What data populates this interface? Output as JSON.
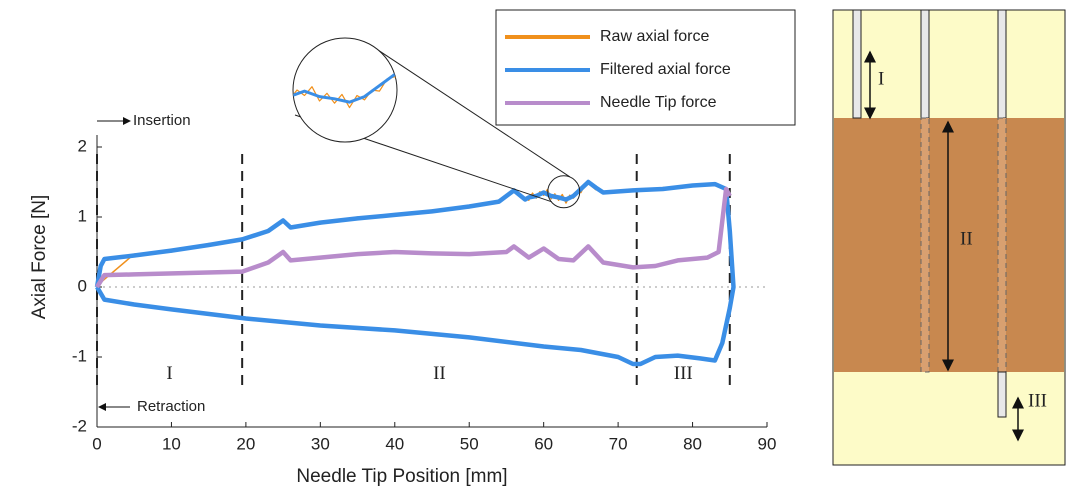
{
  "chart_data": {
    "type": "line",
    "xlabel": "Needle Tip Position [mm]",
    "ylabel": "Axial Force [N]",
    "xlim": [
      0,
      90
    ],
    "xticks": [
      0,
      10,
      20,
      30,
      40,
      50,
      60,
      70,
      80,
      90
    ],
    "ylim": [
      -2,
      2
    ],
    "yticks": [
      -2,
      -1,
      0,
      1,
      2
    ],
    "zero_line": true,
    "legend": "upper right",
    "phase_boundaries": [
      0,
      19.5,
      72.5,
      85
    ],
    "phase_labels": [
      "I",
      "II",
      "III"
    ],
    "annotations": {
      "insertion": "Insertion",
      "retraction": "Retraction"
    },
    "series": [
      {
        "name": "Raw axial force",
        "color": "#f0901c",
        "x": [
          0,
          5,
          10,
          15,
          19.5,
          23,
          25,
          26,
          30,
          35,
          40,
          45,
          50,
          54,
          56,
          57.5,
          58,
          58.5,
          59,
          59.5,
          60,
          60.5,
          61,
          61.5,
          62,
          62.5,
          63,
          63.5,
          64,
          64.5,
          65,
          65.5,
          66,
          67,
          68,
          72,
          76,
          80,
          83,
          84.5
        ],
        "values": [
          0.02,
          0.47,
          0.5,
          0.62,
          0.67,
          0.82,
          0.93,
          0.87,
          0.9,
          1.0,
          1.02,
          1.1,
          1.13,
          1.24,
          1.36,
          1.27,
          1.24,
          1.34,
          1.27,
          1.36,
          1.31,
          1.39,
          1.26,
          1.33,
          1.24,
          1.32,
          1.2,
          1.31,
          1.27,
          1.36,
          1.35,
          1.46,
          1.48,
          1.39,
          1.37,
          1.36,
          1.42,
          1.44,
          1.49,
          1.38
        ]
      },
      {
        "name": "Filtered axial force",
        "color": "#3a8ee6",
        "x": [
          0,
          0.5,
          1,
          5,
          10,
          15,
          19.5,
          23,
          25,
          26,
          30,
          35,
          40,
          45,
          50,
          54,
          56,
          57.5,
          58,
          59,
          60,
          61,
          62,
          63,
          64,
          65,
          66,
          67,
          68,
          72,
          76,
          80,
          83,
          84.5,
          85,
          85.5,
          85,
          84,
          83,
          81,
          78,
          75,
          73,
          72,
          70,
          65,
          60,
          50,
          40,
          30,
          20,
          10,
          5,
          1,
          0
        ],
        "values": [
          0,
          0.3,
          0.4,
          0.45,
          0.52,
          0.6,
          0.68,
          0.8,
          0.95,
          0.85,
          0.92,
          0.98,
          1.03,
          1.08,
          1.15,
          1.22,
          1.38,
          1.25,
          1.28,
          1.3,
          1.35,
          1.3,
          1.28,
          1.25,
          1.3,
          1.4,
          1.5,
          1.42,
          1.35,
          1.38,
          1.4,
          1.45,
          1.47,
          1.4,
          0.8,
          0,
          -0.3,
          -0.8,
          -1.05,
          -1.02,
          -0.98,
          -1.0,
          -1.1,
          -1.1,
          -1.0,
          -0.9,
          -0.85,
          -0.72,
          -0.62,
          -0.55,
          -0.45,
          -0.32,
          -0.25,
          -0.18,
          0
        ]
      },
      {
        "name": "Needle Tip force",
        "color": "#b88ccb",
        "x": [
          0,
          1,
          5,
          19.5,
          23,
          25,
          26,
          30,
          35,
          40,
          45,
          50,
          55,
          56,
          58,
          60,
          62,
          64,
          66,
          68,
          72,
          75,
          78,
          82,
          83.5,
          84.5,
          85
        ],
        "values": [
          0,
          0.17,
          0.18,
          0.22,
          0.35,
          0.5,
          0.38,
          0.42,
          0.47,
          0.5,
          0.48,
          0.47,
          0.5,
          0.58,
          0.42,
          0.55,
          0.4,
          0.38,
          0.58,
          0.35,
          0.28,
          0.3,
          0.38,
          0.42,
          0.5,
          1.4,
          1.3
        ]
      }
    ]
  },
  "diagram": {
    "labels": [
      "I",
      "II",
      "III"
    ]
  }
}
